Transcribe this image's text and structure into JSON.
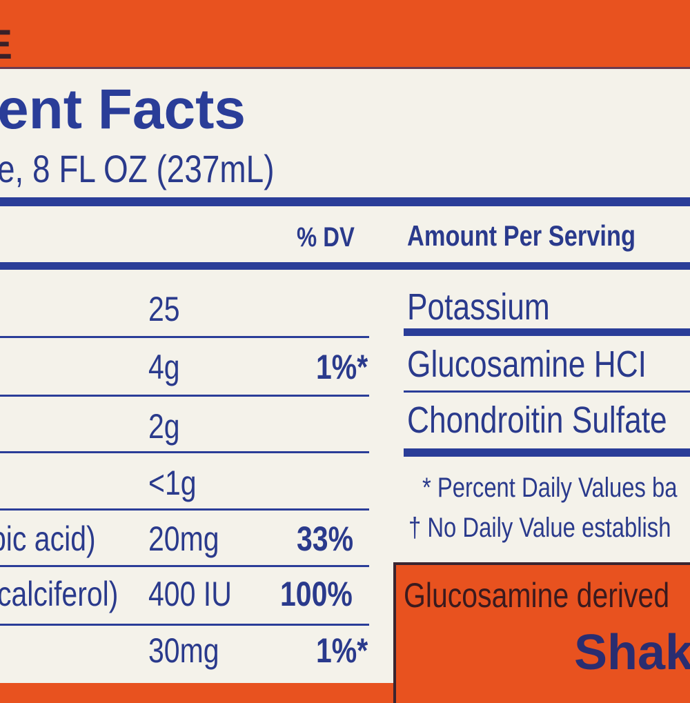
{
  "top_band": {
    "letter": "E",
    "color": "#e8521f"
  },
  "label": {
    "title": "ent Facts",
    "serving": "e, 8 FL OZ (237mL)",
    "header": {
      "dv": "% DV",
      "amount": "Amount Per Serving"
    },
    "left_rows": [
      {
        "name": "",
        "amount": "25",
        "dv": ""
      },
      {
        "name": "",
        "amount": "4g",
        "dv": "1%*"
      },
      {
        "name": "",
        "amount": "2g",
        "dv": ""
      },
      {
        "name": "",
        "amount": "<1g",
        "dv": ""
      },
      {
        "name": "bic acid)",
        "amount": "20mg",
        "dv": "33%"
      },
      {
        "name": "calciferol)",
        "amount": "400 IU",
        "dv": "100%"
      },
      {
        "name": "",
        "amount": "30mg",
        "dv": "1%*"
      }
    ],
    "right_rows": [
      "Potassium",
      "Glucosamine HCI",
      "Chondroitin Sulfate"
    ],
    "footnotes": [
      "* Percent Daily Values ba",
      "† No Daily Value establish"
    ],
    "callout": {
      "text": "Glucosamine derived",
      "brand": "Shak"
    },
    "colors": {
      "blue": "#2a3d98",
      "orange": "#e8521f",
      "panel": "#f4f2ea"
    }
  }
}
